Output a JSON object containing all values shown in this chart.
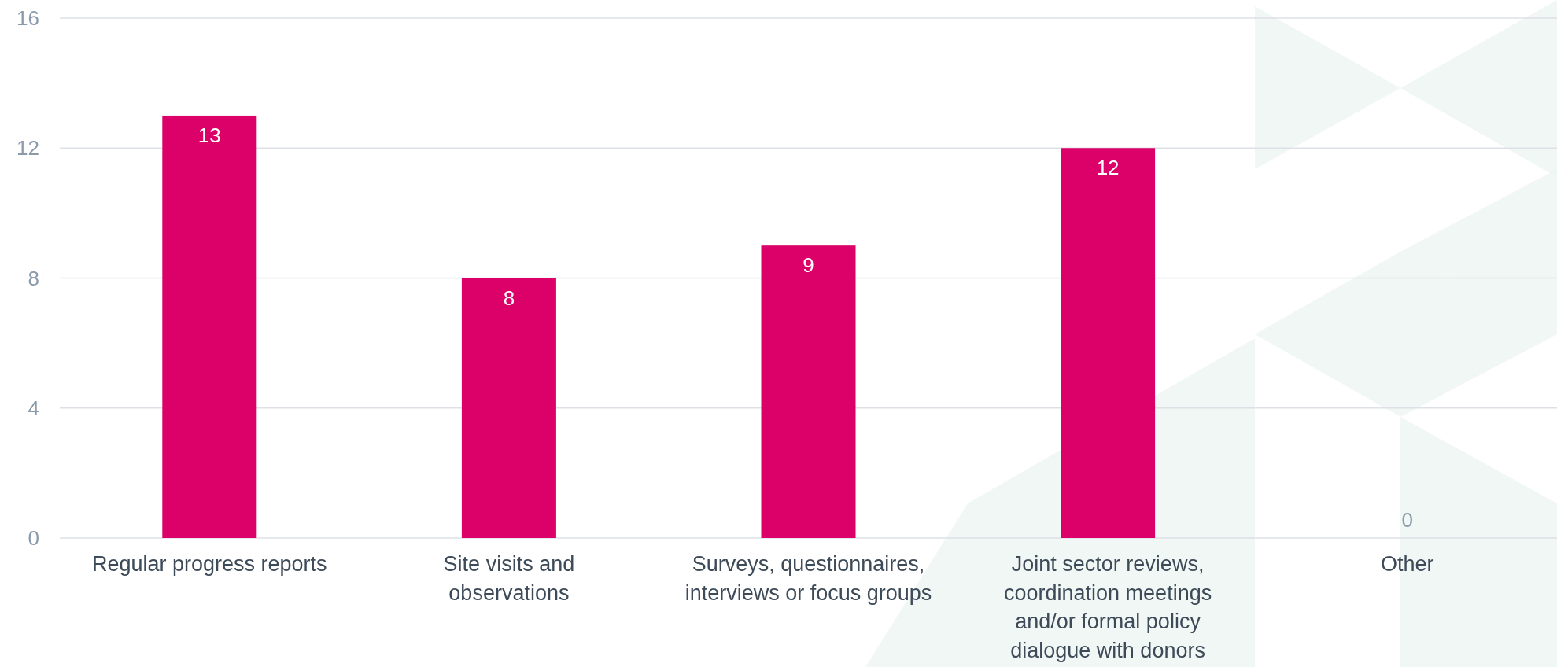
{
  "chart_data": {
    "type": "bar",
    "categories": [
      "Regular progress reports",
      "Site visits and observations",
      "Surveys, questionnaires, interviews or focus groups",
      "Joint sector reviews, coordination meetings and/or formal policy dialogue with donors",
      "Other"
    ],
    "values": [
      13,
      8,
      9,
      12,
      0
    ],
    "color": "#dc0069",
    "ylim": [
      0,
      16
    ],
    "yticks": [
      0,
      4,
      8,
      12,
      16
    ],
    "grid": "y",
    "data_labels": true
  }
}
